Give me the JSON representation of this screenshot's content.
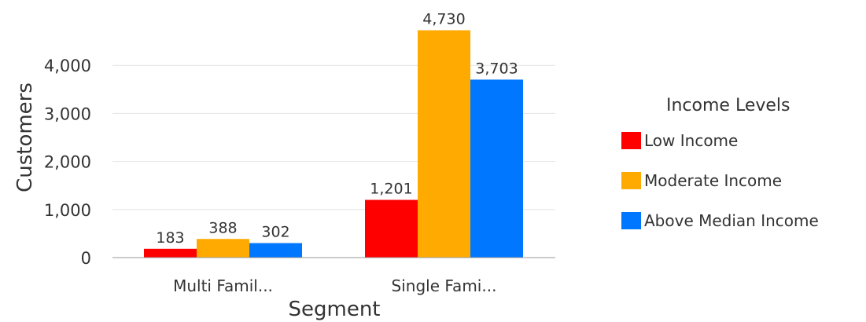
{
  "chart_data": {
    "type": "bar",
    "xlabel": "Segment",
    "ylabel": "Customers",
    "categories": [
      "Multi Famil...",
      "Single Fami..."
    ],
    "ylim": [
      0,
      5000
    ],
    "yticks": [
      0,
      1000,
      2000,
      3000,
      4000
    ],
    "ytick_labels": [
      "0",
      "1,000",
      "2,000",
      "3,000",
      "4,000"
    ],
    "grid": true,
    "legend_title": "Income Levels",
    "legend_position": "right",
    "series": [
      {
        "name": "Low Income",
        "color": "#ff0000",
        "values": [
          183,
          1201
        ],
        "labels": [
          "183",
          "1,201"
        ]
      },
      {
        "name": "Moderate Income",
        "color": "#ffaa00",
        "values": [
          388,
          4730
        ],
        "labels": [
          "388",
          "4,730"
        ]
      },
      {
        "name": "Above Median Income",
        "color": "#0077ff",
        "values": [
          302,
          3703
        ],
        "labels": [
          "302",
          "3,703"
        ]
      }
    ]
  }
}
